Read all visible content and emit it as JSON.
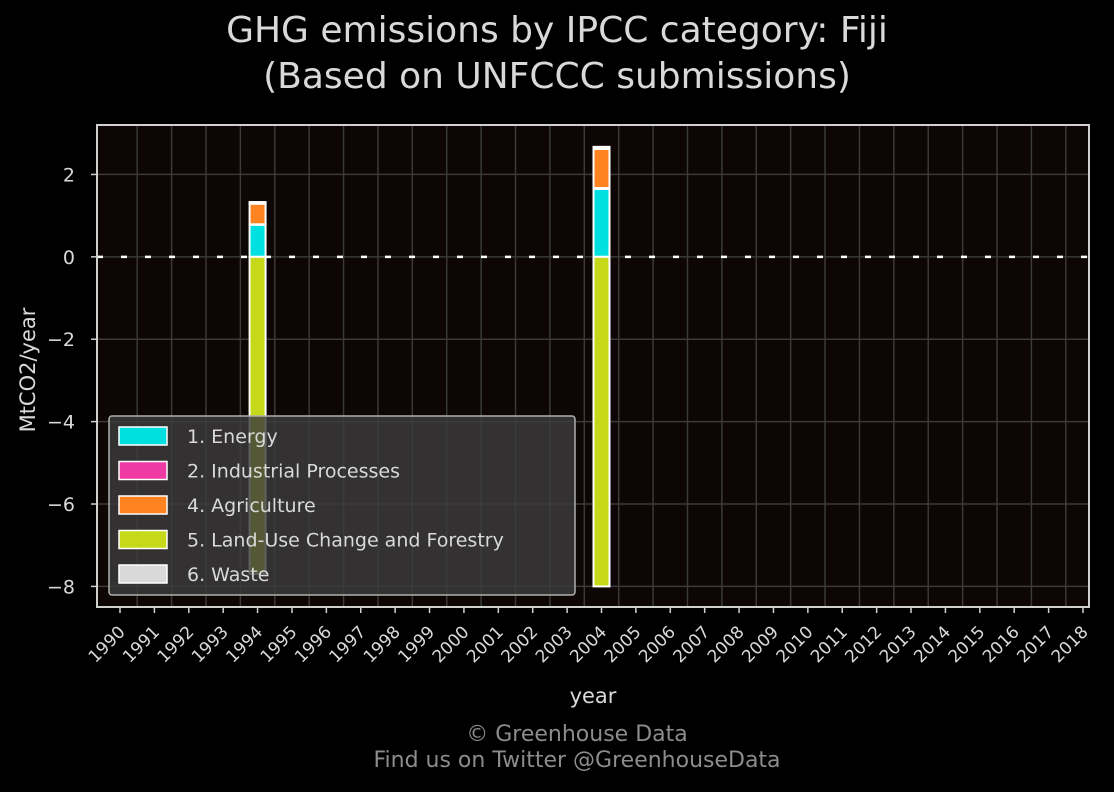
{
  "title_line1": "GHG emissions by IPCC category: Fiji",
  "title_line2": "(Based on UNFCCC submissions)",
  "footer_line1": "© Greenhouse Data",
  "footer_line2": "Find us on Twitter @GreenhouseData",
  "colors": {
    "background": "#000000",
    "plot_bg": "#0e0505",
    "grid": "#3a3a3a",
    "frame": "#d0d0d0",
    "text": "#d9d9d9"
  },
  "chart_data": {
    "type": "bar",
    "stacked": true,
    "xlabel": "year",
    "ylabel": "MtCO2/year",
    "categories": [
      "1990",
      "1991",
      "1992",
      "1993",
      "1994",
      "1995",
      "1996",
      "1997",
      "1998",
      "1999",
      "2000",
      "2001",
      "2002",
      "2003",
      "2004",
      "2005",
      "2006",
      "2007",
      "2008",
      "2009",
      "2010",
      "2011",
      "2012",
      "2013",
      "2014",
      "2015",
      "2016",
      "2017",
      "2018"
    ],
    "ylim": [
      -8.5,
      3.2
    ],
    "yticks": [
      2,
      0,
      -2,
      -4,
      -6,
      -8
    ],
    "ytick_labels": [
      "2",
      "0",
      "−2",
      "−4",
      "−6",
      "−8"
    ],
    "grid": true,
    "zero_line": "dashed",
    "legend_position": "lower-left",
    "series": [
      {
        "name": "1. Energy",
        "color": "#00e0e0",
        "values": {
          "1994": 0.78,
          "2004": 1.65
        }
      },
      {
        "name": "2. Industrial Processes",
        "color": "#ee3aa2",
        "values": {
          "1994": 0.01,
          "2004": 0.02
        }
      },
      {
        "name": "4. Agriculture",
        "color": "#ff8320",
        "values": {
          "1994": 0.5,
          "2004": 0.95
        }
      },
      {
        "name": "5. Land-Use Change and Forestry",
        "color": "#c5d91a",
        "values": {
          "1994": -7.7,
          "2004": -8.0
        }
      },
      {
        "name": "6. Waste",
        "color": "#d9d9d9",
        "values": {
          "1994": 0.04,
          "2004": 0.05
        }
      }
    ]
  }
}
